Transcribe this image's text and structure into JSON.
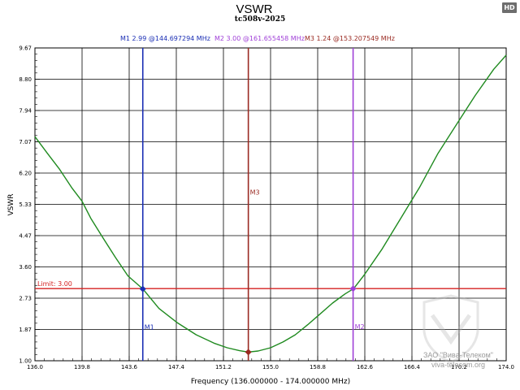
{
  "badge": "HD",
  "watermark": {
    "line1": "ЗАО \"Вива-Телеком\"",
    "line2": "viva-telecom.org"
  },
  "chart_data": {
    "type": "line",
    "title": "VSWR",
    "subtitle": "tc508v-2025",
    "xlabel": "Frequency (136.000000 - 174.000000 MHz)",
    "ylabel": "VSWR",
    "xlim": [
      136.0,
      174.0
    ],
    "ylim": [
      1.0,
      9.67
    ],
    "x_ticks": [
      "136.0",
      "139.8",
      "143.6",
      "147.4",
      "151.2",
      "155.0",
      "158.8",
      "162.6",
      "166.4",
      "170.2",
      "174.0"
    ],
    "y_ticks": [
      "1.00",
      "1.87",
      "2.73",
      "3.60",
      "4.47",
      "5.33",
      "6.20",
      "7.07",
      "7.94",
      "8.80",
      "9.67"
    ],
    "grid": true,
    "limit": {
      "label": "Limit: 3.00",
      "value": 3.0,
      "color": "#d42020"
    },
    "markers": [
      {
        "name": "M1",
        "x": 144.697294,
        "y": 2.99,
        "header": "M1  2.99 @144.697294 MHz",
        "color": "#1a2eb4"
      },
      {
        "name": "M2",
        "x": 161.655458,
        "y": 3.0,
        "header": "M2  3.00 @161.655458 MHz",
        "color": "#a040d8"
      },
      {
        "name": "M3",
        "x": 153.207549,
        "y": 1.24,
        "header": "M3  1.24 @153.207549 MHz",
        "color": "#9a2a22"
      }
    ],
    "series": [
      {
        "name": "VSWR",
        "color": "#1f8a1f",
        "x": [
          136.0,
          137.0,
          138.0,
          139.0,
          139.8,
          140.5,
          141.5,
          142.5,
          143.5,
          144.7,
          146.0,
          147.5,
          149.0,
          150.5,
          151.5,
          152.5,
          153.2,
          154.0,
          155.0,
          156.0,
          157.0,
          158.0,
          159.0,
          160.0,
          161.0,
          161.7,
          162.6,
          164.0,
          165.5,
          167.0,
          168.5,
          170.0,
          171.5,
          173.0,
          174.0
        ],
        "values": [
          7.21,
          6.75,
          6.3,
          5.78,
          5.42,
          4.95,
          4.4,
          3.86,
          3.35,
          2.99,
          2.45,
          2.05,
          1.72,
          1.48,
          1.36,
          1.28,
          1.24,
          1.27,
          1.36,
          1.52,
          1.72,
          2.0,
          2.3,
          2.6,
          2.85,
          3.0,
          3.4,
          4.1,
          4.95,
          5.8,
          6.75,
          7.55,
          8.35,
          9.08,
          9.47
        ]
      }
    ]
  }
}
